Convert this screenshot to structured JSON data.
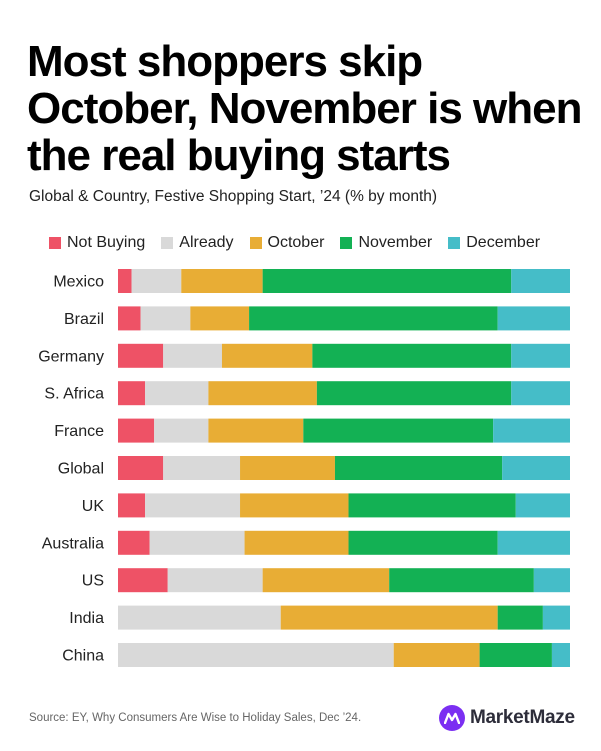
{
  "header": {
    "title": "Most shoppers skip October, November is when the real buying starts",
    "subtitle": "Global & Country, Festive Shopping Start, ’24 (% by month)"
  },
  "footer": {
    "source": "Source: EY, Why Consumers Are Wise to Holiday Sales, Dec ’24.",
    "brand": "MarketMaze"
  },
  "legend": [
    {
      "name": "Not Buying",
      "color": "#ee5266"
    },
    {
      "name": "Already",
      "color": "#d9d9d9"
    },
    {
      "name": "October",
      "color": "#e8ad35"
    },
    {
      "name": "November",
      "color": "#13b154"
    },
    {
      "name": "December",
      "color": "#45bdc8"
    }
  ],
  "chart_data": {
    "type": "bar",
    "orientation": "horizontal",
    "stacked": true,
    "title": "Most shoppers skip October, November is when the real buying starts",
    "subtitle": "Global & Country, Festive Shopping Start, ’24 (% by month)",
    "xlim": [
      0,
      100
    ],
    "grid": false,
    "legend_position": "top",
    "categories": [
      "Mexico",
      "Brazil",
      "Germany",
      "S. Africa",
      "France",
      "Global",
      "UK",
      "Australia",
      "US",
      "India",
      "China"
    ],
    "series": [
      {
        "name": "Not Buying",
        "color": "#ee5266",
        "values": [
          3,
          5,
          10,
          6,
          8,
          10,
          6,
          7,
          11,
          0,
          0
        ]
      },
      {
        "name": "Already",
        "color": "#d9d9d9",
        "values": [
          11,
          11,
          13,
          14,
          12,
          17,
          21,
          21,
          21,
          36,
          61
        ]
      },
      {
        "name": "October",
        "color": "#e8ad35",
        "values": [
          18,
          13,
          20,
          24,
          21,
          21,
          24,
          23,
          28,
          48,
          19
        ]
      },
      {
        "name": "November",
        "color": "#13b154",
        "values": [
          55,
          55,
          44,
          43,
          42,
          37,
          37,
          33,
          32,
          10,
          16
        ]
      },
      {
        "name": "December",
        "color": "#45bdc8",
        "values": [
          13,
          16,
          13,
          13,
          17,
          15,
          12,
          16,
          8,
          6,
          4
        ]
      }
    ]
  }
}
